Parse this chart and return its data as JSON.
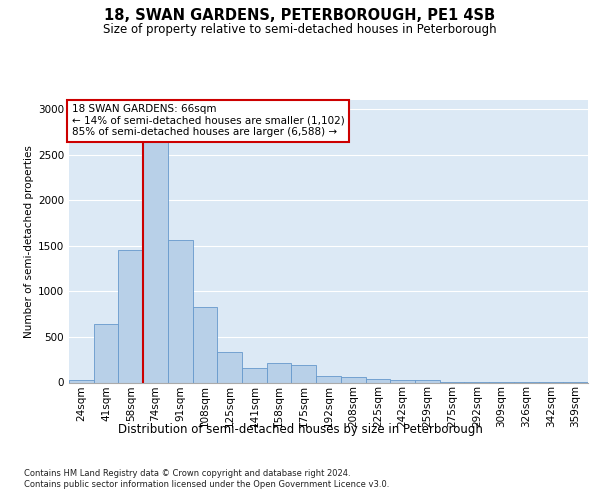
{
  "title": "18, SWAN GARDENS, PETERBOROUGH, PE1 4SB",
  "subtitle": "Size of property relative to semi-detached houses in Peterborough",
  "xlabel": "Distribution of semi-detached houses by size in Peterborough",
  "ylabel": "Number of semi-detached properties",
  "footnote1": "Contains HM Land Registry data © Crown copyright and database right 2024.",
  "footnote2": "Contains public sector information licensed under the Open Government Licence v3.0.",
  "annotation_title": "18 SWAN GARDENS: 66sqm",
  "annotation_line1": "← 14% of semi-detached houses are smaller (1,102)",
  "annotation_line2": "85% of semi-detached houses are larger (6,588) →",
  "bar_color": "#b8d0e8",
  "bar_edge_color": "#6699cc",
  "property_line_color": "#cc0000",
  "annotation_box_edgecolor": "#cc0000",
  "plot_bg_color": "#dce9f5",
  "fig_bg_color": "#ffffff",
  "categories": [
    "24sqm",
    "41sqm",
    "58sqm",
    "74sqm",
    "91sqm",
    "108sqm",
    "125sqm",
    "141sqm",
    "158sqm",
    "175sqm",
    "192sqm",
    "208sqm",
    "225sqm",
    "242sqm",
    "259sqm",
    "275sqm",
    "292sqm",
    "309sqm",
    "326sqm",
    "342sqm",
    "359sqm"
  ],
  "values": [
    25,
    645,
    1455,
    2650,
    1560,
    830,
    340,
    155,
    210,
    195,
    75,
    65,
    35,
    25,
    25,
    8,
    8,
    4,
    4,
    4,
    4
  ],
  "property_line_x": 2.5,
  "ylim": [
    0,
    3100
  ],
  "yticks": [
    0,
    500,
    1000,
    1500,
    2000,
    2500,
    3000
  ],
  "title_fontsize": 10.5,
  "subtitle_fontsize": 8.5,
  "xlabel_fontsize": 8.5,
  "ylabel_fontsize": 7.5,
  "tick_fontsize": 7.5,
  "annotation_fontsize": 7.5,
  "footnote_fontsize": 6.0
}
